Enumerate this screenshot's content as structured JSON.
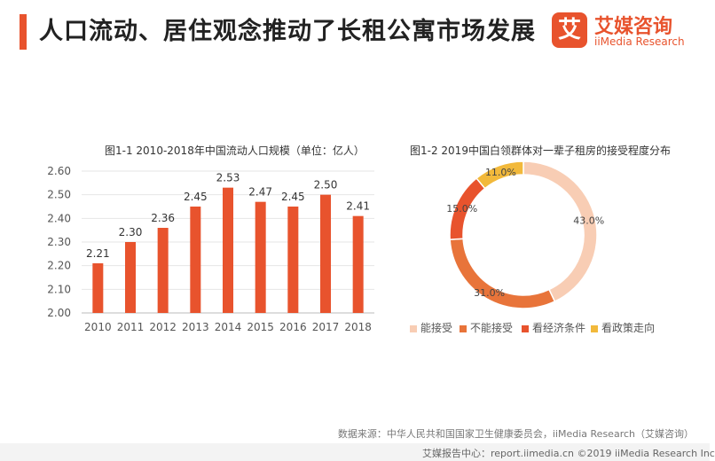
{
  "header": {
    "title": "人口流动、居住观念推动了长租公寓市场发展"
  },
  "logo": {
    "glyph": "艾",
    "name_cn": "艾媒咨询",
    "name_en": "iiMedia Research"
  },
  "colors": {
    "accent": "#e8532d",
    "pie": [
      "#f8cdb4",
      "#e8743a",
      "#e8532d",
      "#f2b93b"
    ]
  },
  "chart_data": [
    {
      "type": "bar",
      "title": "图1-1 2010-2018年中国流动人口规模（单位：亿人）",
      "categories": [
        "2010",
        "2011",
        "2012",
        "2013",
        "2014",
        "2015",
        "2016",
        "2017",
        "2018"
      ],
      "values": [
        2.21,
        2.3,
        2.36,
        2.45,
        2.53,
        2.47,
        2.45,
        2.5,
        2.41
      ],
      "value_labels": [
        "2.21",
        "2.30",
        "2.36",
        "2.45",
        "2.53",
        "2.47",
        "2.45",
        "2.50",
        "2.41"
      ],
      "ylim": [
        2.0,
        2.6
      ],
      "yticks": [
        "2.00",
        "2.10",
        "2.20",
        "2.30",
        "2.40",
        "2.50",
        "2.60"
      ],
      "grid": true,
      "xlabel": "",
      "ylabel": ""
    },
    {
      "type": "pie",
      "title": "图1-2 2019中国白领群体对一辈子租房的接受程度分布",
      "labels": [
        "能接受",
        "不能接受",
        "看经济条件",
        "看政策走向"
      ],
      "values": [
        43.0,
        31.0,
        15.0,
        11.0
      ],
      "value_labels": [
        "43.0%",
        "31.0%",
        "15.0%",
        "11.0%"
      ],
      "legend": "bottom"
    }
  ],
  "source": "数据来源：中华人民共和国国家卫生健康委员会，iiMedia Research（艾媒咨询）",
  "footer": "艾媒报告中心：report.iimedia.cn ©2019 iiMedia Research Inc"
}
